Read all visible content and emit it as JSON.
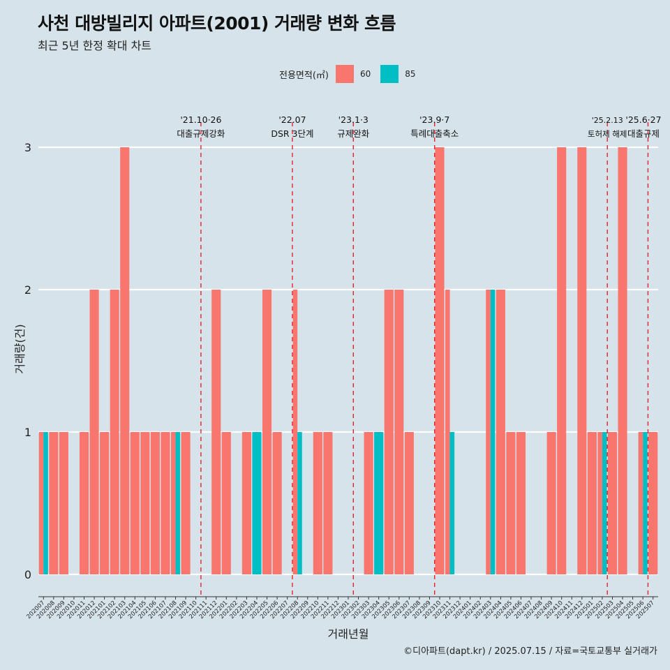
{
  "header": {
    "title": "사천 대방빌리지 아파트(2001) 거래량 변화 흐름",
    "subtitle": "최근 5년 한정 확대 차트"
  },
  "legend": {
    "title": "전용면적(㎡)",
    "items": [
      {
        "label": "60",
        "color": "#f8766d"
      },
      {
        "label": "85",
        "color": "#00bfc4"
      }
    ]
  },
  "caption": "©디아파트(dapt.kr) / 2025.07.15 / 자료=국토교통부 실거래가",
  "chart_data": {
    "type": "bar",
    "xlabel": "거래년월",
    "ylabel": "거래량(건)",
    "ylim": [
      -0.15,
      3.3
    ],
    "yticks": [
      0,
      1,
      2,
      3
    ],
    "categories": [
      "202007",
      "202008",
      "202009",
      "202010",
      "202011",
      "202012",
      "202101",
      "202102",
      "202103",
      "202104",
      "202105",
      "202106",
      "202107",
      "202108",
      "202109",
      "202110",
      "202111",
      "202112",
      "202201",
      "202202",
      "202203",
      "202204",
      "202205",
      "202206",
      "202207",
      "202208",
      "202209",
      "202210",
      "202211",
      "202212",
      "202301",
      "202302",
      "202303",
      "202304",
      "202305",
      "202306",
      "202307",
      "202308",
      "202309",
      "202310",
      "202311",
      "202312",
      "202401",
      "202402",
      "202403",
      "202404",
      "202405",
      "202406",
      "202407",
      "202408",
      "202409",
      "202410",
      "202411",
      "202412",
      "202501",
      "202502",
      "202503",
      "202504",
      "202505",
      "202506",
      "202507"
    ],
    "series": [
      {
        "name": "60",
        "color": "#f8766d",
        "values": [
          1,
          1,
          1,
          0,
          1,
          2,
          1,
          2,
          3,
          1,
          1,
          1,
          1,
          1,
          1,
          0,
          0,
          2,
          1,
          0,
          1,
          0,
          2,
          1,
          0,
          2,
          0,
          1,
          1,
          0,
          0,
          0,
          1,
          0,
          2,
          2,
          1,
          0,
          0,
          3,
          2,
          0,
          0,
          0,
          2,
          2,
          1,
          1,
          0,
          0,
          1,
          3,
          0,
          3,
          1,
          1,
          1,
          3,
          0,
          1,
          1
        ]
      },
      {
        "name": "85",
        "color": "#00bfc4",
        "values": [
          1,
          0,
          0,
          0,
          0,
          0,
          0,
          0,
          0,
          0,
          0,
          0,
          0,
          1,
          0,
          0,
          0,
          0,
          0,
          0,
          0,
          1,
          0,
          0,
          0,
          1,
          0,
          0,
          0,
          0,
          0,
          0,
          0,
          1,
          0,
          0,
          0,
          0,
          0,
          0,
          1,
          0,
          0,
          0,
          2,
          0,
          0,
          0,
          0,
          0,
          0,
          0,
          0,
          0,
          0,
          1,
          0,
          0,
          0,
          1,
          0
        ]
      }
    ],
    "annotations": [
      {
        "x": 15.5,
        "date": "'21.10·26",
        "label": "대출규제강화"
      },
      {
        "x": 24.5,
        "date": "'22.07",
        "label": "DSR 3단계"
      },
      {
        "x": 30.5,
        "date": "'23.1·3",
        "label": "규제완화"
      },
      {
        "x": 38.5,
        "date": "'23.9·7",
        "label": "특례대출축소"
      },
      {
        "x": 55.5,
        "date": "'25.2.13",
        "label": "토허제 해제"
      },
      {
        "x": 59.5,
        "date": "'25.6·27",
        "label": "대출규제"
      }
    ]
  }
}
